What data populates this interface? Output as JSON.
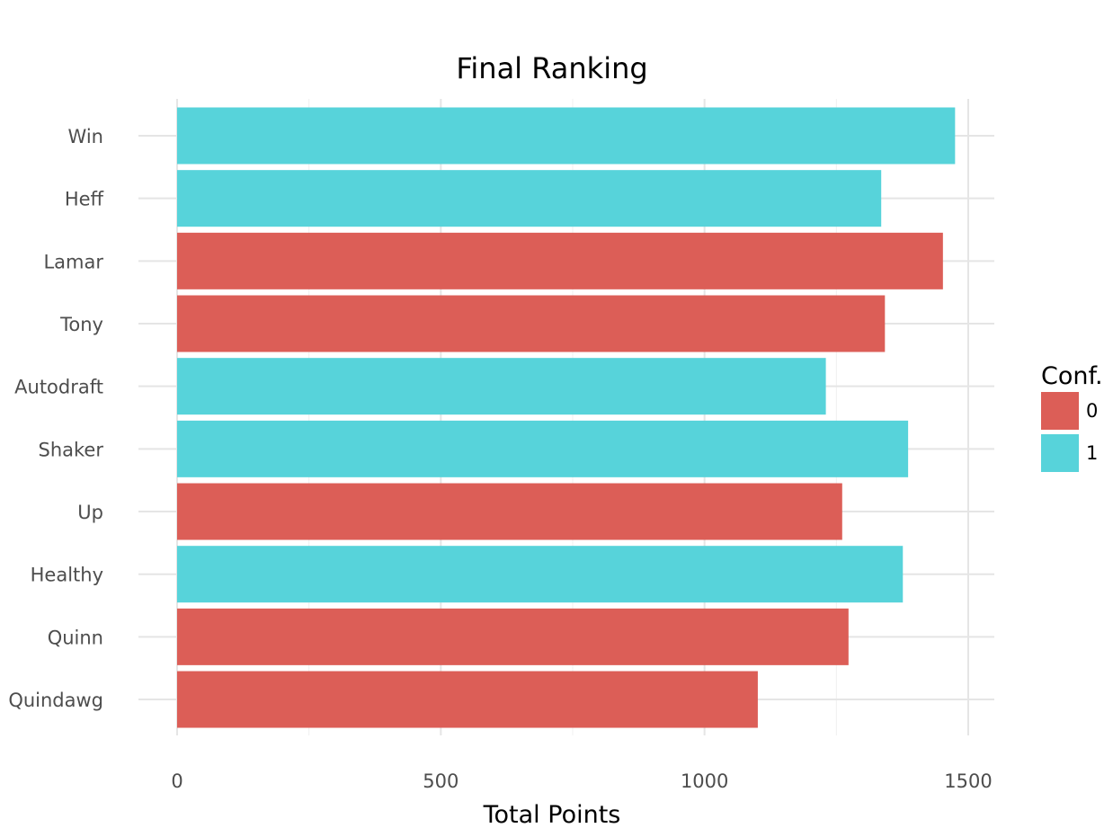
{
  "chart_data": {
    "type": "bar",
    "orientation": "horizontal",
    "title": "Final Ranking",
    "xlabel": "Total Points",
    "ylabel": "",
    "xlim": [
      0,
      1500
    ],
    "x_ticks": [
      0,
      500,
      1000,
      1500
    ],
    "categories": [
      "Win",
      "Heff",
      "Lamar",
      "Tony",
      "Autodraft",
      "Shaker",
      "Up",
      "Healthy",
      "Quinn",
      "Quindawg"
    ],
    "values": [
      1475,
      1335,
      1452,
      1342,
      1230,
      1386,
      1261,
      1376,
      1273,
      1101
    ],
    "groups": [
      "1",
      "1",
      "0",
      "0",
      "1",
      "1",
      "0",
      "1",
      "0",
      "0"
    ],
    "legend": {
      "title": "Conf.",
      "placement": "right",
      "entries": [
        {
          "label": "0",
          "color": "#dc5e57"
        },
        {
          "label": "1",
          "color": "#57d3da"
        }
      ]
    },
    "grid": true
  }
}
